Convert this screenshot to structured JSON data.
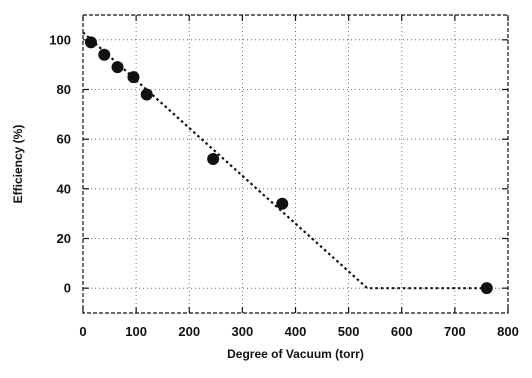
{
  "chart_data": {
    "type": "scatter",
    "title": "",
    "xlabel": "Degree of Vacuum (torr)",
    "ylabel": "Efficiency (%)",
    "xlim": [
      0,
      800
    ],
    "ylim": [
      -10,
      110
    ],
    "xticks": [
      0,
      100,
      200,
      300,
      400,
      500,
      600,
      700,
      800
    ],
    "yticks": [
      0,
      20,
      40,
      60,
      80,
      100
    ],
    "grid": true,
    "series": [
      {
        "type": "scatter",
        "x": [
          15,
          40,
          65,
          95,
          120,
          245,
          375,
          760
        ],
        "y": [
          99,
          94,
          89,
          85,
          78,
          52,
          34,
          0
        ]
      },
      {
        "type": "line",
        "style": "dotted",
        "x": [
          0,
          535,
          760
        ],
        "y": [
          103,
          0,
          0
        ]
      }
    ]
  }
}
